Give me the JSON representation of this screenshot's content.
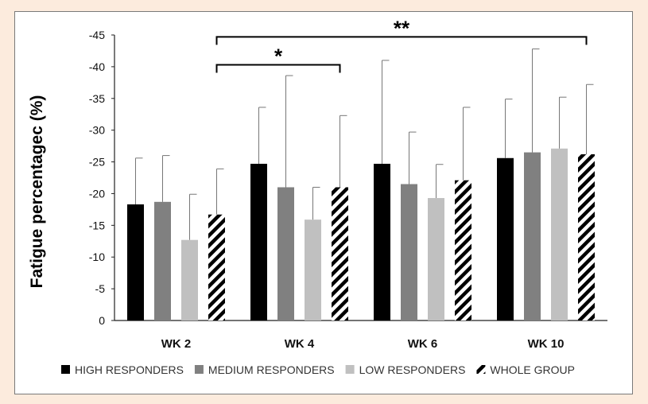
{
  "chart_data": {
    "type": "bar",
    "ylabel": "Fatigue percentagec (%)",
    "xlabel": "",
    "ylim": [
      0,
      -45
    ],
    "y_ticks": [
      "-45",
      "-40",
      "-35",
      "-30",
      "-25",
      "-20",
      "-15",
      "-10",
      "-5",
      "0"
    ],
    "y_tick_values": [
      -45,
      -40,
      -35,
      -30,
      -25,
      -20,
      -15,
      -10,
      -5,
      0
    ],
    "categories": [
      "WK 2",
      "WK 4",
      "WK 6",
      "WK 10"
    ],
    "series": [
      {
        "name": "HIGH RESPONDERS",
        "values": [
          -18.3,
          -24.7,
          -24.7,
          -25.6
        ],
        "error": [
          7.3,
          8.9,
          16.3,
          9.3
        ],
        "color": "#000000",
        "pattern": "solid"
      },
      {
        "name": "MEDIUM RESPONDERS",
        "values": [
          -18.7,
          -21.0,
          -21.5,
          -26.5
        ],
        "error": [
          7.3,
          17.6,
          8.2,
          16.3
        ],
        "color": "#808080",
        "pattern": "solid"
      },
      {
        "name": "LOW RESPONDERS",
        "values": [
          -12.7,
          -15.9,
          -19.3,
          -27.1
        ],
        "error": [
          7.2,
          5.1,
          5.3,
          8.1
        ],
        "color": "#c0c0c0",
        "pattern": "solid"
      },
      {
        "name": "WHOLE GROUP",
        "values": [
          -16.7,
          -21.0,
          -22.1,
          -26.2
        ],
        "error": [
          7.2,
          11.3,
          11.5,
          11.0
        ],
        "color": "#000000",
        "pattern": "hatch"
      }
    ],
    "annotations": [
      {
        "label": "*",
        "from_category": "WK 2",
        "to_category": "WK 4",
        "at_y": -40.3
      },
      {
        "label": "**",
        "from_category": "WK 2",
        "to_category": "WK 10",
        "at_y": -44.7
      }
    ],
    "legend_position": "bottom",
    "grid": false
  }
}
